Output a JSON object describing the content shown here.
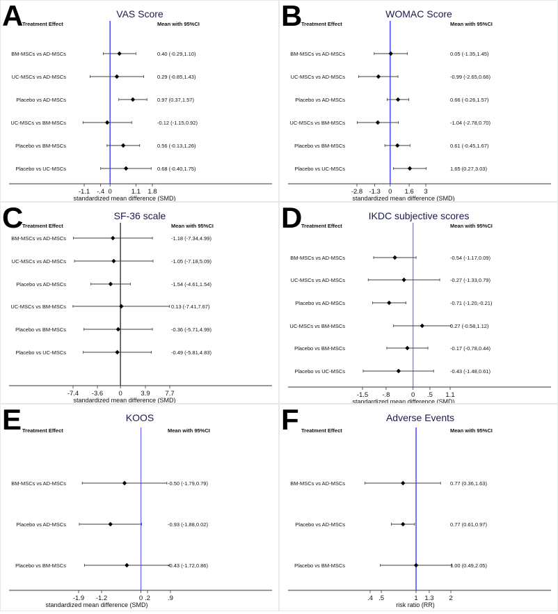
{
  "chart_data": [
    {
      "type": "forest",
      "letter": "A",
      "title": "VAS Score",
      "col_left": "Treatment Effect",
      "col_right": "Mean with 95%CI",
      "xlabel": "standardized mean difference (SMD)",
      "scale": "linear",
      "ticks": [
        -1.1,
        -0.4,
        0,
        1.1,
        1.8
      ],
      "tick_labels": [
        "-1.1",
        "-.4",
        "0",
        "1.1",
        "1.8"
      ],
      "ref_line_color": "#2a2aff",
      "rows": [
        {
          "label": "BM-MSCs vs AD-MSCs",
          "mean": 0.4,
          "lo": -0.29,
          "hi": 1.1,
          "text": "0.40 (-0.29,1.10)"
        },
        {
          "label": "UC-MSCs vs AD-MSCs",
          "mean": 0.29,
          "lo": -0.85,
          "hi": 1.43,
          "text": "0.29 (-0.85,1.43)"
        },
        {
          "label": "Placebo vs AD-MSCs",
          "mean": 0.97,
          "lo": 0.37,
          "hi": 1.57,
          "text": "0.97 (0.37,1.57)"
        },
        {
          "label": "UC-MSCs vs BM-MSCs",
          "mean": -0.12,
          "lo": -1.15,
          "hi": 0.92,
          "text": "-0.12 (-1.15,0.92)"
        },
        {
          "label": "Placebo vs BM-MSCs",
          "mean": 0.56,
          "lo": -0.13,
          "hi": 1.26,
          "text": "0.56 (-0.13,1.26)"
        },
        {
          "label": "Placebo vs UC-MSCs",
          "mean": 0.68,
          "lo": -0.4,
          "hi": 1.75,
          "text": "0.68 (-0.40,1.75)"
        }
      ]
    },
    {
      "type": "forest",
      "letter": "B",
      "title": "WOMAC Score",
      "col_left": "Treatment Effect",
      "col_right": "Mean with 95%CI",
      "xlabel": "standardized mean difference (SMD)",
      "scale": "linear",
      "ticks": [
        -2.8,
        -1.3,
        0,
        1.6,
        3
      ],
      "tick_labels": [
        "-2.8",
        "-1.3",
        "0",
        "1.6",
        "3"
      ],
      "ref_line_color": "#2a2aff",
      "rows": [
        {
          "label": "BM-MSCs vs AD-MSCs",
          "mean": 0.05,
          "lo": -1.35,
          "hi": 1.45,
          "text": "0.05 (-1.35,1.45)"
        },
        {
          "label": "UC-MSCs vs AD-MSCs",
          "mean": -0.99,
          "lo": -2.65,
          "hi": 0.66,
          "text": "-0.99 (-2.65,0.66)"
        },
        {
          "label": "Placebo vs AD-MSCs",
          "mean": 0.66,
          "lo": -0.26,
          "hi": 1.57,
          "text": "0.66 (-0.26,1.57)"
        },
        {
          "label": "UC-MSCs vs BM-MSCs",
          "mean": -1.04,
          "lo": -2.78,
          "hi": 0.7,
          "text": "-1.04 (-2.78,0.70)"
        },
        {
          "label": "Placebo vs BM-MSCs",
          "mean": 0.61,
          "lo": -0.45,
          "hi": 1.67,
          "text": "0.61 (-0.45,1.67)"
        },
        {
          "label": "Placebo vs UC-MSCs",
          "mean": 1.65,
          "lo": 0.27,
          "hi": 3.03,
          "text": "1.65 (0.27,3.03)"
        }
      ]
    },
    {
      "type": "forest",
      "letter": "C",
      "title": "SF-36 scale",
      "col_left": "Treatment Effect",
      "col_right": "Mean with 95%CI",
      "xlabel": "standardized mean difference (SMD)",
      "scale": "linear",
      "ticks": [
        -7.4,
        -3.6,
        0,
        3.9,
        7.7
      ],
      "tick_labels": [
        "-7.4",
        "-3.6",
        "0",
        "3.9",
        "7.7"
      ],
      "ref_line_color": "#222222",
      "rows": [
        {
          "label": "BM-MSCs vs AD-MSCs",
          "mean": -1.18,
          "lo": -7.34,
          "hi": 4.99,
          "text": "-1.18 (-7.34,4.99)"
        },
        {
          "label": "UC-MSCs vs AD-MSCs",
          "mean": -1.05,
          "lo": -7.18,
          "hi": 5.09,
          "text": "-1.05 (-7.18,5.09)"
        },
        {
          "label": "Placebo vs AD-MSCs",
          "mean": -1.54,
          "lo": -4.61,
          "hi": 1.54,
          "text": "-1.54 (-4.61,1.54)"
        },
        {
          "label": "UC-MSCs vs BM-MSCs",
          "mean": 0.13,
          "lo": -7.41,
          "hi": 7.67,
          "text": "0.13 (-7.41,7.67)"
        },
        {
          "label": "Placebo vs BM-MSCs",
          "mean": -0.36,
          "lo": -5.71,
          "hi": 4.99,
          "text": "-0.36 (-5.71,4.99)"
        },
        {
          "label": "Placebo vs UC-MSCs",
          "mean": -0.49,
          "lo": -5.81,
          "hi": 4.83,
          "text": "-0.49 (-5.81,4.83)"
        }
      ]
    },
    {
      "type": "forest",
      "letter": "D",
      "title": "IKDC subjective scores",
      "col_left": "Treatment Effect",
      "col_right": "Mean with 95%CI",
      "xlabel": "standardized mean difference (SMD)",
      "scale": "linear",
      "ticks": [
        -1.5,
        -0.8,
        0,
        0.5,
        1.1
      ],
      "tick_labels": [
        "-1.5",
        "-.8",
        "0",
        ".5",
        "1.1"
      ],
      "ref_line_color": "#7a7aff",
      "rows": [
        {
          "label": "BM-MSCs vs AD-MSCs",
          "mean": -0.54,
          "lo": -1.17,
          "hi": 0.09,
          "text": "-0.54 (-1.17,0.09)"
        },
        {
          "label": "UC-MSCs vs AD-MSCs",
          "mean": -0.27,
          "lo": -1.33,
          "hi": 0.79,
          "text": "-0.27 (-1.33,0.79)"
        },
        {
          "label": "Placebo vs AD-MSCs",
          "mean": -0.71,
          "lo": -1.2,
          "hi": -0.21,
          "text": "-0.71 (-1.20,-0.21)"
        },
        {
          "label": "UC-MSCs vs BM-MSCs",
          "mean": 0.27,
          "lo": -0.58,
          "hi": 1.12,
          "text": "0.27 (-0.58,1.12)"
        },
        {
          "label": "Placebo vs BM-MSCs",
          "mean": -0.17,
          "lo": -0.78,
          "hi": 0.44,
          "text": "-0.17 (-0.78,0.44)"
        },
        {
          "label": "Placebo vs UC-MSCs",
          "mean": -0.43,
          "lo": -1.48,
          "hi": 0.61,
          "text": "-0.43 (-1.48,0.61)"
        }
      ]
    },
    {
      "type": "forest",
      "letter": "E",
      "title": "KOOS",
      "col_left": "Treatment Effect",
      "col_right": "Mean with 95%CI",
      "xlabel": "standardized mean difference (SMD)",
      "scale": "linear",
      "ticks": [
        -1.9,
        -1.2,
        0,
        0.2,
        0.9
      ],
      "tick_labels": [
        "-1.9",
        "-1.2",
        "0",
        ".2",
        ".9"
      ],
      "ref_line_color": "#6a6aff",
      "rows": [
        {
          "label": "BM-MSCs vs AD-MSCs",
          "mean": -0.5,
          "lo": -1.79,
          "hi": 0.79,
          "text": "-0.50 (-1.79,0.79)"
        },
        {
          "label": "Placebo vs AD-MSCs",
          "mean": -0.93,
          "lo": -1.88,
          "hi": 0.02,
          "text": "-0.93 (-1.88,0.02)"
        },
        {
          "label": "Placebo vs BM-MSCs",
          "mean": -0.43,
          "lo": -1.72,
          "hi": 0.86,
          "text": "-0.43 (-1.72,0.86)"
        }
      ]
    },
    {
      "type": "forest",
      "letter": "F",
      "title": "Adverse Events",
      "col_left": "Treatment Effect",
      "col_right": "Mean with 95%CI",
      "xlabel": "risk ratio (RR)",
      "scale": "log",
      "ticks": [
        0.4,
        0.5,
        1,
        1.3,
        2
      ],
      "tick_labels": [
        ".4",
        ".5",
        "1",
        "1.3",
        "2"
      ],
      "ref_line_color": "#2a2aff",
      "rows": [
        {
          "label": "BM-MSCs vs AD-MSCs",
          "mean": 0.77,
          "lo": 0.36,
          "hi": 1.63,
          "text": "0.77 (0.36,1.63)"
        },
        {
          "label": "Placebo vs AD-MSCs",
          "mean": 0.77,
          "lo": 0.61,
          "hi": 0.97,
          "text": "0.77 (0.61,0.97)"
        },
        {
          "label": "Placebo vs BM-MSCs",
          "mean": 1.0,
          "lo": 0.49,
          "hi": 2.05,
          "text": "1.00 (0.49,2.05)"
        }
      ]
    }
  ]
}
